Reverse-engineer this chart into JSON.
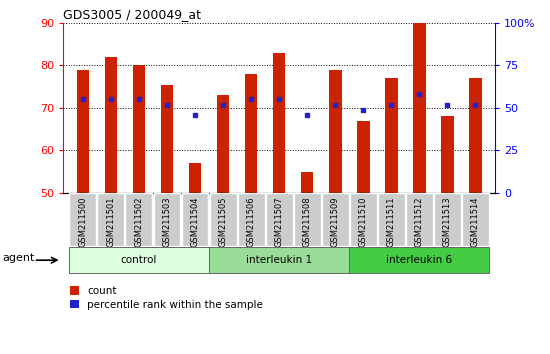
{
  "title": "GDS3005 / 200049_at",
  "samples": [
    "GSM211500",
    "GSM211501",
    "GSM211502",
    "GSM211503",
    "GSM211504",
    "GSM211505",
    "GSM211506",
    "GSM211507",
    "GSM211508",
    "GSM211509",
    "GSM211510",
    "GSM211511",
    "GSM211512",
    "GSM211513",
    "GSM211514"
  ],
  "counts": [
    79,
    82,
    80,
    75.5,
    57,
    73,
    78,
    83,
    55,
    79,
    67,
    77,
    90,
    68,
    77
  ],
  "percentile": [
    55,
    55,
    55,
    52,
    46,
    52,
    55,
    55,
    46,
    52,
    49,
    52,
    58,
    52,
    52
  ],
  "bar_color": "#cc2200",
  "dot_color": "#2222cc",
  "ylim_left": [
    50,
    90
  ],
  "ylim_right": [
    0,
    100
  ],
  "yticks_left": [
    50,
    60,
    70,
    80,
    90
  ],
  "yticks_right": [
    0,
    25,
    50,
    75,
    100
  ],
  "ybase": 50,
  "group_defs": [
    {
      "start": 0,
      "end": 4,
      "label": "control",
      "color": "#ddffdd"
    },
    {
      "start": 5,
      "end": 9,
      "label": "interleukin 1",
      "color": "#99dd99"
    },
    {
      "start": 10,
      "end": 14,
      "label": "interleukin 6",
      "color": "#44cc44"
    }
  ],
  "agent_label": "agent",
  "legend_count_label": "count",
  "legend_pct_label": "percentile rank within the sample",
  "bar_width": 0.45,
  "xticklabel_bg": "#cccccc",
  "fig_width": 5.5,
  "fig_height": 3.54,
  "dpi": 100
}
